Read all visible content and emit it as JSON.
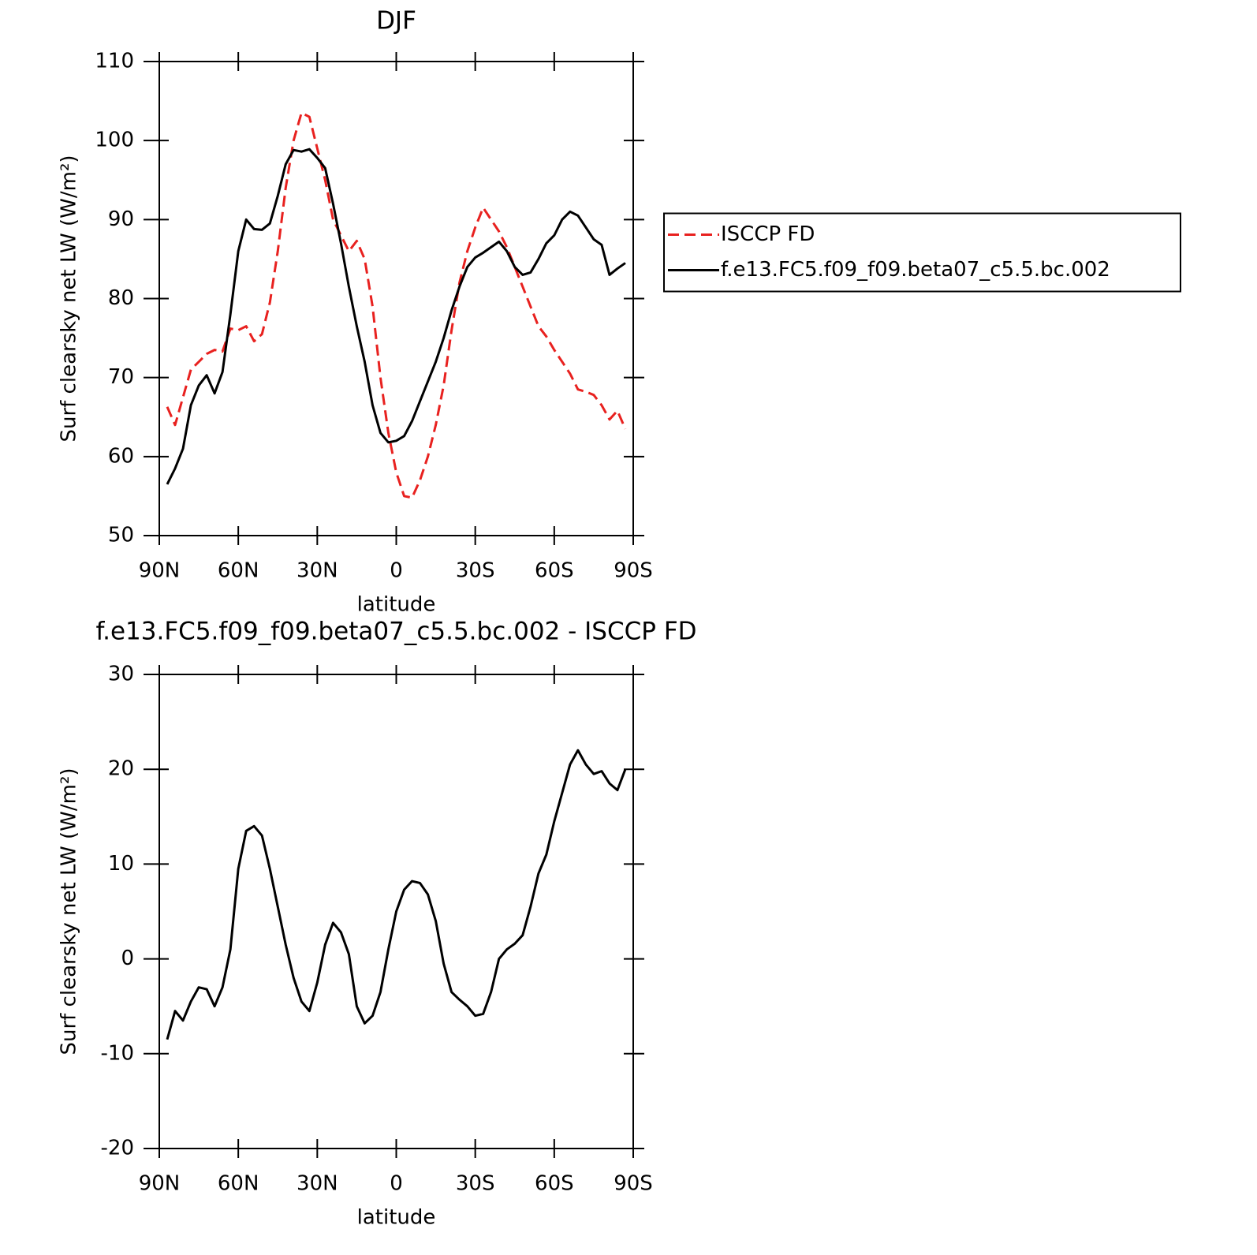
{
  "chart_data": [
    {
      "type": "line",
      "title": "DJF",
      "xlabel": "latitude",
      "ylabel": "Surf clearsky net LW (W/m²)",
      "x": [
        87,
        84,
        81,
        78,
        75,
        72,
        69,
        66,
        63,
        60,
        57,
        54,
        51,
        48,
        45,
        42,
        39,
        36,
        33,
        30,
        27,
        24,
        21,
        18,
        15,
        12,
        9,
        6,
        3,
        0,
        -3,
        -6,
        -9,
        -12,
        -15,
        -18,
        -21,
        -24,
        -27,
        -30,
        -33,
        -36,
        -39,
        -42,
        -45,
        -48,
        -51,
        -54,
        -57,
        -60,
        -63,
        -66,
        -69,
        -72,
        -75,
        -78,
        -81,
        -84,
        -87
      ],
      "series": [
        {
          "name": "ISCCP FD",
          "color": "#e8211f",
          "dash": true,
          "values": [
            66.3,
            64,
            67.5,
            71,
            72,
            73,
            73.5,
            73.3,
            76.2,
            76,
            76.5,
            74.6,
            75.5,
            79.5,
            86,
            94,
            100,
            103.5,
            103,
            99,
            95,
            90,
            88,
            86,
            87.3,
            85,
            79,
            70,
            63,
            58,
            55,
            54.8,
            57,
            60,
            64,
            69,
            76,
            82,
            86,
            89,
            91.5,
            90,
            88.5,
            86.5,
            84,
            81.5,
            79,
            76.5,
            75.2,
            73.5,
            72,
            70.5,
            68.5,
            68.2,
            67.8,
            66.5,
            64.7,
            65.8,
            63.5
          ]
        },
        {
          "name": "f.e13.FC5.f09_f09.beta07_c5.5.bc.002",
          "color": "#000000",
          "dash": false,
          "values": [
            56.5,
            58.5,
            61,
            66.5,
            69,
            70.3,
            68,
            70.7,
            78,
            86,
            90,
            88.8,
            88.7,
            89.5,
            93,
            97,
            98.8,
            98.6,
            98.9,
            97.8,
            96.5,
            92,
            87,
            81.5,
            76.5,
            72,
            66.5,
            63,
            61.8,
            62,
            62.6,
            64.5,
            67,
            69.5,
            72,
            75,
            78.5,
            81.5,
            84,
            85.2,
            85.8,
            86.5,
            87.2,
            86,
            84,
            83,
            83.3,
            85,
            87,
            88,
            90,
            91,
            90.5,
            89,
            87.5,
            86.8,
            83,
            83.8,
            84.5
          ]
        }
      ],
      "xlim": [
        90,
        -90
      ],
      "xticks": [
        {
          "value": 90,
          "label": "90N"
        },
        {
          "value": 60,
          "label": "60N"
        },
        {
          "value": 30,
          "label": "30N"
        },
        0,
        {
          "value": -30,
          "label": "30S"
        },
        {
          "value": -60,
          "label": "60S"
        },
        {
          "value": -90,
          "label": "90S"
        }
      ],
      "ylim": [
        50,
        110
      ],
      "yticks": [
        50,
        60,
        70,
        80,
        90,
        100,
        110
      ],
      "grid": false,
      "legend": "right"
    },
    {
      "type": "line",
      "title": "f.e13.FC5.f09_f09.beta07_c5.5.bc.002 - ISCCP FD",
      "xlabel": "latitude",
      "ylabel": "Surf clearsky net LW (W/m²)",
      "x": [
        87,
        84,
        81,
        78,
        75,
        72,
        69,
        66,
        63,
        60,
        57,
        54,
        51,
        48,
        45,
        42,
        39,
        36,
        33,
        30,
        27,
        24,
        21,
        18,
        15,
        12,
        9,
        6,
        3,
        0,
        -3,
        -6,
        -9,
        -12,
        -15,
        -18,
        -21,
        -24,
        -27,
        -30,
        -33,
        -36,
        -39,
        -42,
        -45,
        -48,
        -51,
        -54,
        -57,
        -60,
        -63,
        -66,
        -69,
        -72,
        -75,
        -78,
        -81,
        -84,
        -87
      ],
      "series": [
        {
          "color": "#000000",
          "dash": false,
          "values": [
            -8.5,
            -5.5,
            -6.5,
            -4.5,
            -3,
            -3.2,
            -5,
            -3,
            1,
            9.5,
            13.5,
            14,
            13,
            9.5,
            5.5,
            1.5,
            -2,
            -4.5,
            -5.5,
            -2.5,
            1.5,
            3.8,
            2.8,
            0.5,
            -5,
            -6.8,
            -6,
            -3.5,
            1,
            5,
            7.3,
            8.2,
            8,
            6.8,
            4,
            -0.5,
            -3.5,
            -4.3,
            -5,
            -6,
            -5.8,
            -3.5,
            0,
            1,
            1.6,
            2.5,
            5.5,
            9,
            11,
            14.5,
            17.5,
            20.5,
            22,
            20.5,
            19.5,
            19.8,
            18.5,
            17.8,
            20
          ]
        }
      ],
      "xlim": [
        90,
        -90
      ],
      "xticks": [
        {
          "value": 90,
          "label": "90N"
        },
        {
          "value": 60,
          "label": "60N"
        },
        {
          "value": 30,
          "label": "30N"
        },
        0,
        {
          "value": -30,
          "label": "30S"
        },
        {
          "value": -60,
          "label": "60S"
        },
        {
          "value": -90,
          "label": "90S"
        }
      ],
      "ylim": [
        -20,
        30
      ],
      "yticks": [
        -20,
        -10,
        0,
        10,
        20,
        30
      ],
      "grid": false
    }
  ]
}
